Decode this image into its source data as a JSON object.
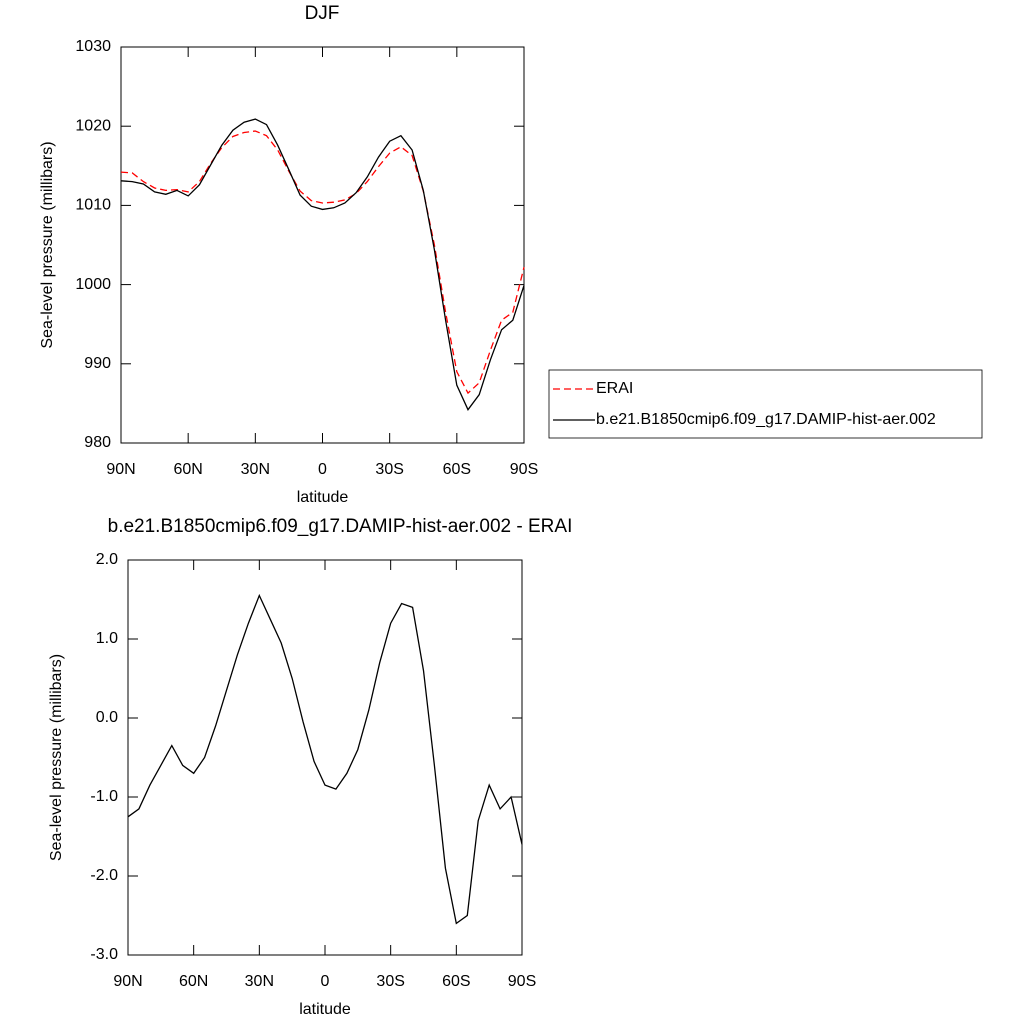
{
  "chart_data": [
    {
      "type": "line",
      "title": "DJF",
      "xlabel": "latitude",
      "ylabel": "Sea-level pressure (millibars)",
      "x": [
        90,
        85,
        80,
        75,
        70,
        65,
        60,
        55,
        50,
        45,
        40,
        35,
        30,
        25,
        20,
        15,
        10,
        5,
        0,
        -5,
        -10,
        -15,
        -20,
        -25,
        -30,
        -35,
        -40,
        -45,
        -50,
        -55,
        -60,
        -65,
        -70,
        -75,
        -80,
        -85,
        -90
      ],
      "xlim": [
        90,
        -90
      ],
      "xticks": [
        {
          "value": 90,
          "label": "90N"
        },
        {
          "value": 60,
          "label": "60N"
        },
        {
          "value": 30,
          "label": "30N"
        },
        0,
        {
          "value": -30,
          "label": "30S"
        },
        {
          "value": -60,
          "label": "60S"
        },
        {
          "value": -90,
          "label": "90S"
        }
      ],
      "ylim": [
        980,
        1030
      ],
      "yticks": [
        980,
        990,
        1000,
        1010,
        1020,
        1030
      ],
      "legend": "right",
      "series": [
        {
          "name": "ERAI",
          "color": "#ff0000",
          "linestyle": "dashed",
          "values": [
            1014.2,
            1014.1,
            1013.0,
            1012.2,
            1011.9,
            1012.0,
            1011.7,
            1013.0,
            1015.3,
            1017.3,
            1018.7,
            1019.2,
            1019.4,
            1018.8,
            1017.0,
            1014.3,
            1011.8,
            1010.6,
            1010.3,
            1010.4,
            1010.7,
            1011.5,
            1013.0,
            1014.9,
            1016.6,
            1017.4,
            1016.3,
            1011.8,
            1005.0,
            996.5,
            989.0,
            986.3,
            987.6,
            991.7,
            995.5,
            996.5,
            1002.2
          ]
        },
        {
          "name": "b.e21.B1850cmip6.f09_g17.DAMIP-hist-aer.002",
          "color": "#000000",
          "linestyle": "solid",
          "values": [
            1013.1,
            1013.0,
            1012.7,
            1011.7,
            1011.4,
            1011.9,
            1011.2,
            1012.6,
            1015.1,
            1017.6,
            1019.5,
            1020.5,
            1020.9,
            1020.2,
            1017.6,
            1014.5,
            1011.3,
            1009.9,
            1009.5,
            1009.7,
            1010.3,
            1011.6,
            1013.6,
            1016.1,
            1018.1,
            1018.8,
            1017.0,
            1011.9,
            1004.4,
            995.5,
            987.3,
            984.2,
            986.1,
            990.5,
            994.3,
            995.5,
            999.9
          ]
        }
      ]
    },
    {
      "type": "line",
      "title": "b.e21.B1850cmip6.f09_g17.DAMIP-hist-aer.002 - ERAI",
      "xlabel": "latitude",
      "ylabel": "Sea-level pressure (millibars)",
      "x": [
        90,
        85,
        80,
        75,
        70,
        65,
        60,
        55,
        50,
        45,
        40,
        35,
        30,
        25,
        20,
        15,
        10,
        5,
        0,
        -5,
        -10,
        -15,
        -20,
        -25,
        -30,
        -35,
        -40,
        -45,
        -50,
        -55,
        -60,
        -65,
        -70,
        -75,
        -80,
        -85,
        -90
      ],
      "xlim": [
        90,
        -90
      ],
      "xticks": [
        {
          "value": 90,
          "label": "90N"
        },
        {
          "value": 60,
          "label": "60N"
        },
        {
          "value": 30,
          "label": "30N"
        },
        0,
        {
          "value": -30,
          "label": "30S"
        },
        {
          "value": -60,
          "label": "60S"
        },
        {
          "value": -90,
          "label": "90S"
        }
      ],
      "ylim": [
        -3,
        2
      ],
      "yticks": [
        {
          "value": -3,
          "label": "-3.0"
        },
        {
          "value": -2,
          "label": "-2.0"
        },
        {
          "value": -1,
          "label": "-1.0"
        },
        {
          "value": 0,
          "label": "0.0"
        },
        {
          "value": 1,
          "label": "1.0"
        },
        {
          "value": 2,
          "label": "2.0"
        }
      ],
      "series": [
        {
          "color": "#000000",
          "linestyle": "solid",
          "values": [
            -1.25,
            -1.15,
            -0.85,
            -0.6,
            -0.35,
            -0.6,
            -0.7,
            -0.5,
            -0.1,
            0.35,
            0.8,
            1.2,
            1.55,
            1.25,
            0.95,
            0.5,
            -0.05,
            -0.55,
            -0.85,
            -0.9,
            -0.7,
            -0.4,
            0.1,
            0.7,
            1.2,
            1.45,
            1.4,
            0.6,
            -0.6,
            -1.9,
            -2.6,
            -2.5,
            -1.3,
            -0.85,
            -1.15,
            -1.0,
            -1.6
          ]
        }
      ]
    }
  ]
}
